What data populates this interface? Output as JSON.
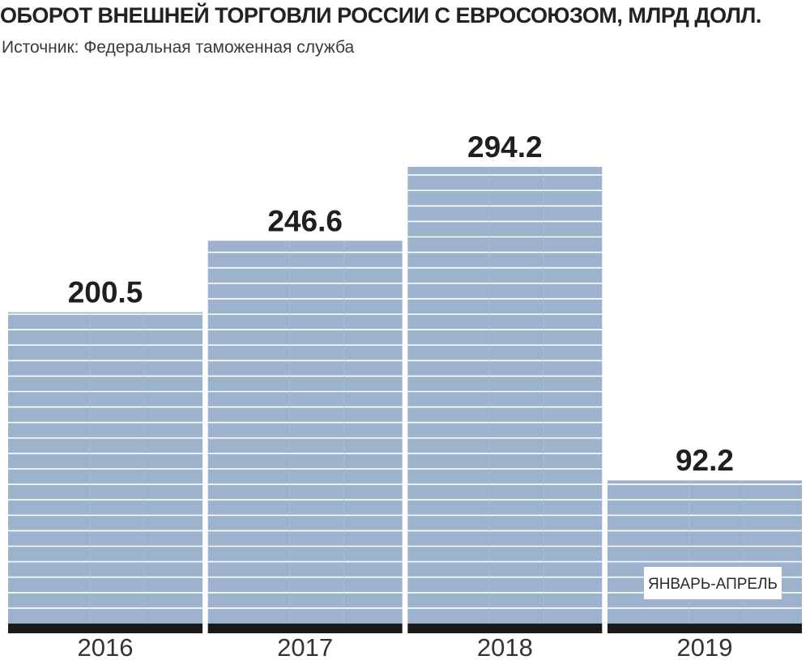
{
  "chart_data": {
    "type": "bar",
    "title": "ОБОРОТ ВНЕШНЕЙ ТОРГОВЛИ РОССИИ С ЕВРОСОЮЗОМ, МЛРД ДОЛЛ.",
    "subtitle": "Источник: Федеральная таможенная служба",
    "categories": [
      "2016",
      "2017",
      "2018",
      "2019"
    ],
    "values": [
      200.5,
      246.6,
      294.2,
      92.2
    ],
    "value_labels": [
      "200.5",
      "246.6",
      "294.2",
      "92.2"
    ],
    "annotation": {
      "category": "2019",
      "text": "ЯНВАРЬ-АПРЕЛЬ"
    },
    "ylim": [
      0,
      294.2
    ],
    "grid": false,
    "colors": {
      "bar": "#9db3cd",
      "stripe": "#ffffff",
      "base": "#1a1a1a"
    }
  }
}
